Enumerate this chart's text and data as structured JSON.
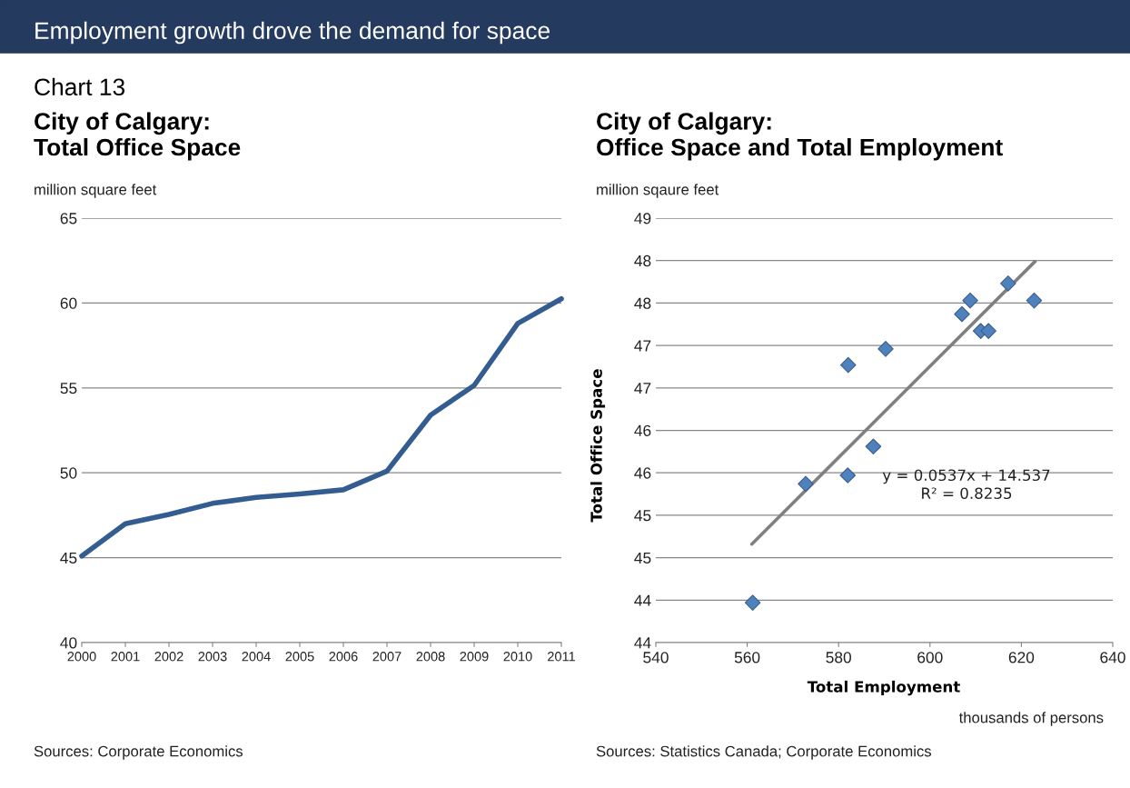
{
  "chart_data": [
    {
      "type": "line",
      "title": "City of Calgary:\nTotal Office Space",
      "ylabel": "million square feet",
      "annotations": [
        "Employment growth drove the demand for space",
        "Chart 13",
        "Sources: Corporate Economics"
      ],
      "categories": [
        "2000",
        "2001",
        "2002",
        "2003",
        "2004",
        "2005",
        "2006",
        "2007",
        "2008",
        "2009",
        "2010",
        "2011"
      ],
      "values": [
        45.1,
        47.0,
        47.55,
        48.2,
        48.55,
        48.75,
        49.0,
        50.1,
        53.4,
        55.15,
        58.8,
        60.25
      ],
      "color": "#335d90",
      "ylim": [
        40,
        65
      ],
      "yticks": [
        40,
        45,
        50,
        55,
        60,
        65
      ],
      "grid": "y",
      "marker": "none",
      "line_style": "solid"
    },
    {
      "type": "scatter",
      "title": "City of Calgary:\nOffice Space and Total Employment",
      "xlabel": "Total Employment",
      "ylabel": "Total Office Space",
      "annotations": [
        "million sqaure feet",
        "y = 0.0537x + 14.537\nR² = 0.8235",
        "thousands of persons",
        "Sources: Statistics Canada; Corporate Economics"
      ],
      "series": [
        {
          "type": "scatter",
          "color": "#4f81bd",
          "marker": "diamond",
          "x": [
            561.2,
            572.8,
            582.0,
            582.1,
            587.6,
            590.3,
            607.0,
            608.8,
            611.1,
            612.8,
            617.1,
            622.8
          ],
          "values": [
            43.97,
            45.37,
            45.47,
            46.77,
            45.81,
            46.96,
            47.37,
            47.53,
            47.17,
            47.17,
            47.73,
            47.53
          ]
        },
        {
          "type": "line",
          "color": "#808080",
          "marker": "none",
          "x": [
            561,
            623
          ],
          "values": [
            44.66,
            47.99
          ]
        }
      ],
      "xlim": [
        540,
        640
      ],
      "xticks": [
        540,
        560,
        580,
        600,
        620,
        640
      ],
      "ylim": [
        43.5,
        48.5
      ],
      "yticks": [
        {
          "value": 43.5,
          "label": "44"
        },
        {
          "value": 44,
          "label": "44"
        },
        {
          "value": 44.5,
          "label": "45"
        },
        {
          "value": 45,
          "label": "45"
        },
        {
          "value": 45.5,
          "label": "46"
        },
        {
          "value": 46,
          "label": "46"
        },
        {
          "value": 46.5,
          "label": "47"
        },
        {
          "value": 47,
          "label": "47"
        },
        {
          "value": 47.5,
          "label": "48"
        },
        {
          "value": 48,
          "label": "48"
        },
        {
          "value": 48.5,
          "label": "49"
        }
      ],
      "grid": "y"
    }
  ]
}
